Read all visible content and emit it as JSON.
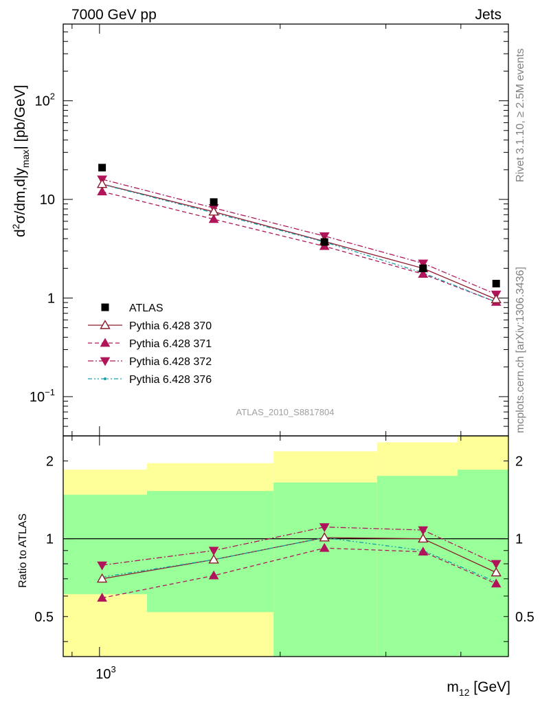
{
  "header": {
    "left": "7000 GeV pp",
    "right": "Jets"
  },
  "side_labels": {
    "rivet": "Rivet 3.1.10, ≥ 2.5M events",
    "mcplots": "mcplots.cern.ch [arXiv:1306.3436]"
  },
  "watermark": "ATLAS_2010_S8817804",
  "colors": {
    "data": "#000000",
    "p370": "#8b1a2b",
    "p371": "#b0155a",
    "p372": "#b0155a",
    "p376": "#13a0a8",
    "band_outer": "#ffff99",
    "band_inner": "#99ff99"
  },
  "chart_data": [
    {
      "type": "scatter",
      "panel": "main",
      "scale": "log-log",
      "ylabel_parts": {
        "d": "d",
        "sup2": "2",
        "body": "σ/dm,d|y",
        "sub": "max",
        "tail": "| [pb/GeV]"
      },
      "xlim": [
        870,
        4800
      ],
      "ylim": [
        0.04,
        600
      ],
      "yticks": [
        {
          "value": 0.1,
          "base": "10",
          "exp": "−1"
        },
        {
          "value": 1,
          "base": "1",
          "exp": ""
        },
        {
          "value": 10,
          "base": "10",
          "exp": ""
        },
        {
          "value": 100,
          "base": "10",
          "exp": "2"
        }
      ],
      "x": [
        1010,
        1550,
        2370,
        3460,
        4580
      ],
      "series": [
        {
          "key": "atlas",
          "name": "ATLAS",
          "marker": "square",
          "line": "none",
          "values": [
            21.0,
            9.4,
            3.7,
            2.0,
            1.4
          ]
        },
        {
          "key": "p370",
          "name": "Pythia 6.428 370",
          "marker": "triangle-up-open",
          "line": "solid",
          "values": [
            14.3,
            7.5,
            3.75,
            2.0,
            0.97
          ]
        },
        {
          "key": "p371",
          "name": "Pythia 6.428 371",
          "marker": "triangle-up",
          "line": "dashed",
          "values": [
            12.0,
            6.3,
            3.35,
            1.75,
            0.91
          ]
        },
        {
          "key": "p372",
          "name": "Pythia 6.428 372",
          "marker": "triangle-down",
          "line": "dashdot",
          "values": [
            16.0,
            8.2,
            4.25,
            2.25,
            1.09
          ]
        },
        {
          "key": "p376",
          "name": "Pythia 6.428 376",
          "marker": "dot",
          "line": "dashdotdot",
          "values": [
            14.2,
            7.3,
            3.7,
            1.8,
            0.91
          ]
        }
      ]
    },
    {
      "type": "scatter",
      "panel": "ratio",
      "scale": "log-log",
      "ylabel": "Ratio to ATLAS",
      "xlabel": "m",
      "xlabel_sub": "12",
      "xlabel_tail": " [GeV]",
      "xtick_label": {
        "value": 1000,
        "base": "10",
        "exp": "3"
      },
      "yticks": [
        {
          "value": 0.5,
          "label": "0.5"
        },
        {
          "value": 1,
          "label": "1"
        },
        {
          "value": 2,
          "label": "2"
        }
      ],
      "ylim": [
        0.35,
        2.5
      ],
      "bands": [
        {
          "x_lo": 870,
          "x_hi": 1200,
          "inner_lo": 0.61,
          "inner_hi": 1.48,
          "outer_lo": 0.35,
          "outer_hi": 1.85
        },
        {
          "x_lo": 1200,
          "x_hi": 1950,
          "inner_lo": 0.52,
          "inner_hi": 1.53,
          "outer_lo": 0.35,
          "outer_hi": 1.96
        },
        {
          "x_lo": 1950,
          "x_hi": 2900,
          "inner_lo": 0.35,
          "inner_hi": 1.65,
          "outer_lo": 0.35,
          "outer_hi": 2.18
        },
        {
          "x_lo": 2900,
          "x_hi": 3950,
          "inner_lo": 0.35,
          "inner_hi": 1.75,
          "outer_lo": 0.35,
          "outer_hi": 2.36
        },
        {
          "x_lo": 3950,
          "x_hi": 4800,
          "inner_lo": 0.35,
          "inner_hi": 1.85,
          "outer_lo": 0.35,
          "outer_hi": 2.5
        }
      ],
      "x": [
        1010,
        1550,
        2370,
        3460,
        4580
      ],
      "series": [
        {
          "key": "p370",
          "name": "Pythia 6.428 370",
          "values": [
            0.7,
            0.83,
            1.01,
            1.0,
            0.74
          ]
        },
        {
          "key": "p371",
          "name": "Pythia 6.428 371",
          "values": [
            0.59,
            0.72,
            0.92,
            0.89,
            0.67
          ]
        },
        {
          "key": "p372",
          "name": "Pythia 6.428 372",
          "values": [
            0.79,
            0.9,
            1.11,
            1.08,
            0.8
          ]
        },
        {
          "key": "p376",
          "name": "Pythia 6.428 376",
          "values": [
            0.71,
            0.83,
            1.01,
            0.9,
            0.68
          ]
        }
      ]
    }
  ]
}
